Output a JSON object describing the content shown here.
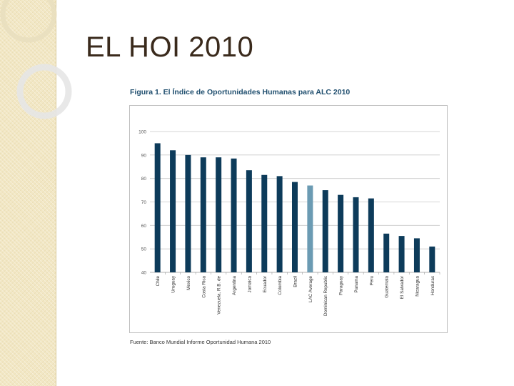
{
  "slide": {
    "title": "EL HOI 2010",
    "figure_title": "Figura 1.  El Índice de Oportunidades Humanas para ALC 2010",
    "source": "Fuente: Banco Mundial Informe Oportunidad Humana 2010"
  },
  "colors": {
    "bar": "#0d3b5a",
    "highlight_bar": "#6b9bb3",
    "band": "#f2e7c4",
    "title_text": "#3a2a1c",
    "figure_title_text": "#1f4e6e"
  },
  "chart_data": {
    "type": "bar",
    "title": "Figura 1.  El Índice de Oportunidades Humanas para ALC 2010",
    "xlabel": "",
    "ylabel": "",
    "ylim": [
      40,
      100
    ],
    "yticks": [
      40,
      50,
      60,
      70,
      80,
      90,
      100
    ],
    "grid": true,
    "legend": "none",
    "highlight_category": "LAC Average",
    "categories": [
      "Chile",
      "Uruguay",
      "Mexico",
      "Costa Rica",
      "Venezuela, R.B. de",
      "Argentina",
      "Jamaica",
      "Ecuador",
      "Colombia",
      "Brazil",
      "LAC Average",
      "Dominican Republic",
      "Paraguay",
      "Panama",
      "Peru",
      "Guatemala",
      "El Salvador",
      "Nicaragua",
      "Honduras"
    ],
    "values": [
      95,
      92,
      90,
      89,
      89,
      88.5,
      83.5,
      81.5,
      81,
      78.5,
      77,
      75,
      73,
      72,
      71.5,
      56.5,
      55.5,
      54.5,
      51
    ]
  }
}
